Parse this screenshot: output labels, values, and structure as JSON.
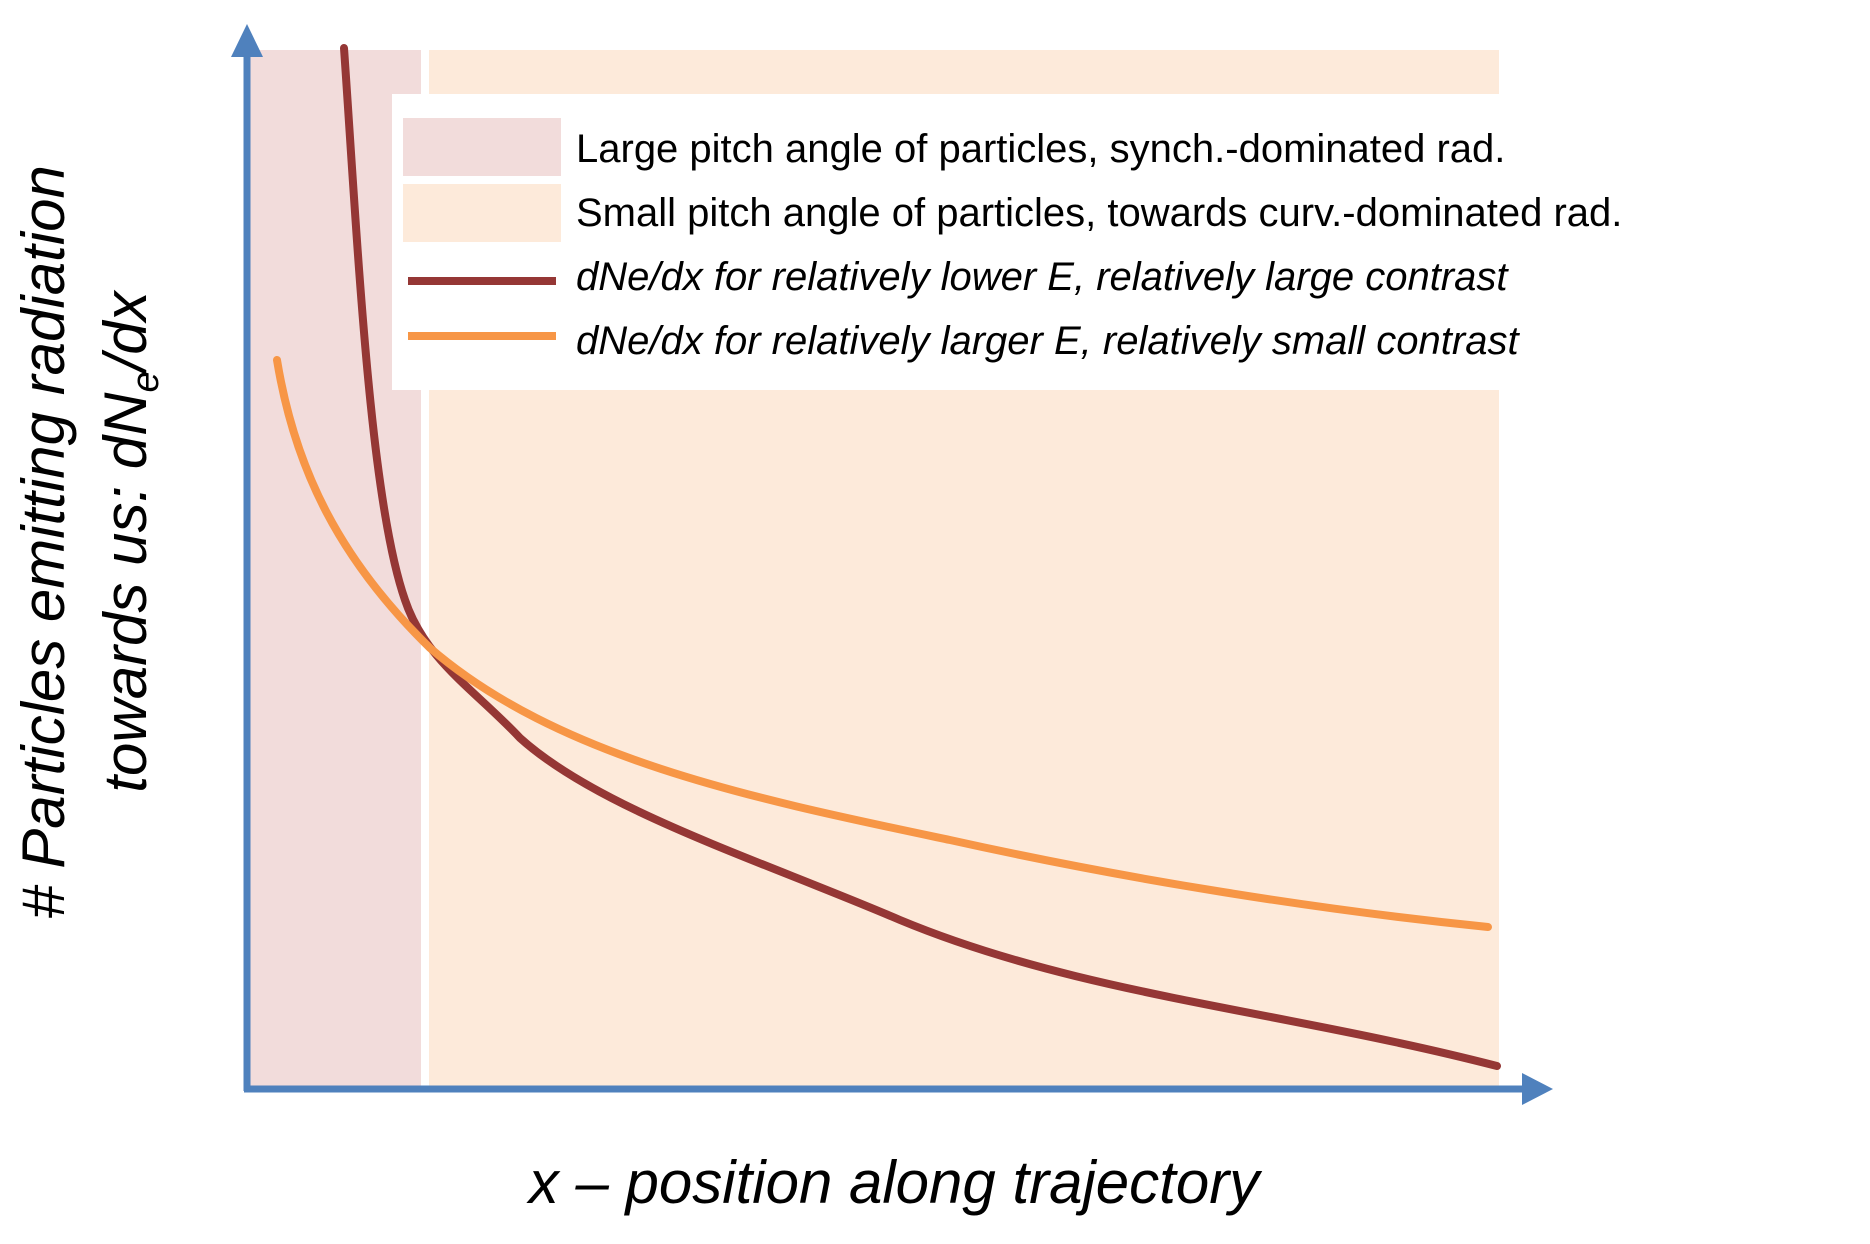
{
  "colors": {
    "axis": "#4F81BD",
    "synch_region": "#F2DCDB",
    "curv_region": "#FDEADA",
    "curve_lower_E": "#953735",
    "curve_larger_E": "#F79646"
  },
  "legend": {
    "items": [
      {
        "label": "Large pitch angle of particles, synch.-dominated rad.",
        "style": "box",
        "color": "#F2DCDB"
      },
      {
        "label": "Small pitch angle of particles, towards curv.-dominated rad.",
        "style": "box",
        "color": "#FDEADA"
      },
      {
        "label": "dNe/dx for relatively lower E, relatively large contrast",
        "style": "line",
        "color": "#953735"
      },
      {
        "label": "dNe/dx for relatively larger E, relatively small contrast",
        "style": "line",
        "color": "#F79646"
      }
    ]
  },
  "axes": {
    "x_title": "x – position along trajectory",
    "y_title_line1": "# Particles emitting radiation",
    "y_title_line2_prefix": "towards us:   dN",
    "y_title_subscript": "e",
    "y_title_suffix": "/dx"
  }
}
